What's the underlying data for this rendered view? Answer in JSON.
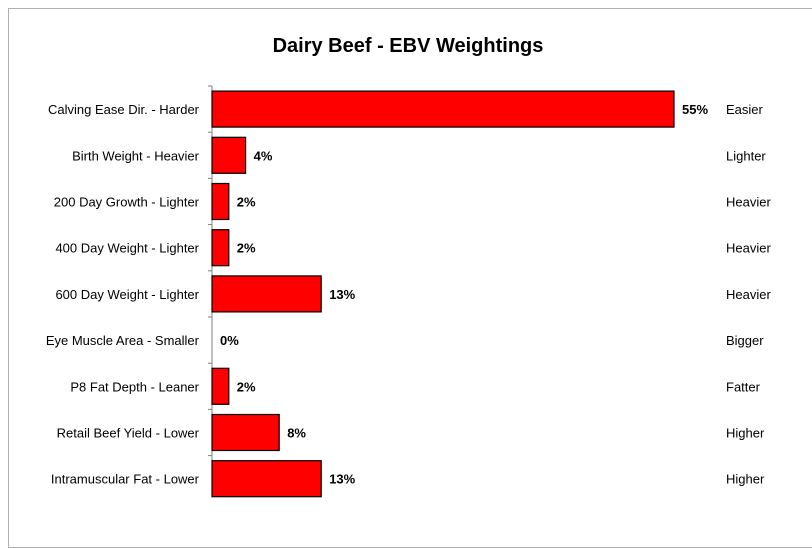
{
  "chart_data": {
    "type": "bar",
    "orientation": "horizontal",
    "title": "Dairy Beef - EBV Weightings",
    "categories": [
      "Calving Ease Dir. - Harder",
      "Birth Weight - Heavier",
      "200 Day Growth - Lighter",
      "400 Day Weight - Lighter",
      "600 Day Weight - Lighter",
      "Eye Muscle Area - Smaller",
      "P8 Fat Depth - Leaner",
      "Retail Beef Yield - Lower",
      "Intramuscular Fat - Lower"
    ],
    "right_labels": [
      "Easier",
      "Lighter",
      "Heavier",
      "Heavier",
      "Heavier",
      "Bigger",
      "Fatter",
      "Higher",
      "Higher"
    ],
    "values": [
      55,
      4,
      2,
      2,
      13,
      0,
      2,
      8,
      13
    ],
    "value_labels": [
      "55%",
      "4%",
      "2%",
      "2%",
      "13%",
      "0%",
      "2%",
      "8%",
      "13%"
    ],
    "unit": "%",
    "xlim": [
      0,
      60
    ],
    "bar_color": "#ff0000",
    "bar_border_color": "#000000",
    "grid": false,
    "legend": "none"
  }
}
